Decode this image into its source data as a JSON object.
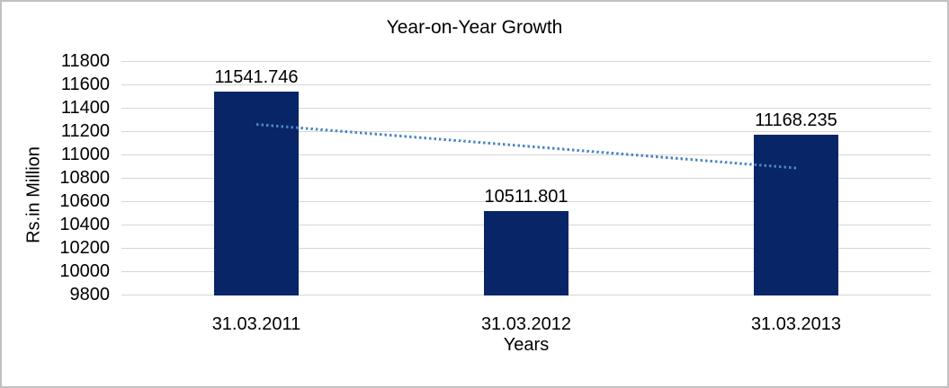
{
  "window": {
    "background": "#ffffff",
    "border_color": "#c0c0c0"
  },
  "chart_data": {
    "type": "bar",
    "title": "Year-on-Year Growth",
    "xlabel": "Years",
    "ylabel": "Rs.in Million",
    "categories": [
      "31.03.2011",
      "31.03.2012",
      "31.03.2013"
    ],
    "values": [
      11541.746,
      10511.801,
      11168.235
    ],
    "data_labels": [
      "11541.746",
      "10511.801",
      "11168.235"
    ],
    "ylim": [
      9800,
      11800
    ],
    "ytick_step": 200,
    "ytick_labels": [
      "9800",
      "10000",
      "10200",
      "10400",
      "10600",
      "10800",
      "11000",
      "11200",
      "11400",
      "11600",
      "11800"
    ],
    "grid": true,
    "legend_position": "none",
    "bar_color": "#082567",
    "gridline_color": "#d6d6d6",
    "text_color": "#000000",
    "trendline": {
      "type": "linear",
      "style": "dotted",
      "color": "#4a86c8",
      "start_value": 11260.68,
      "end_value": 10887.17
    }
  }
}
